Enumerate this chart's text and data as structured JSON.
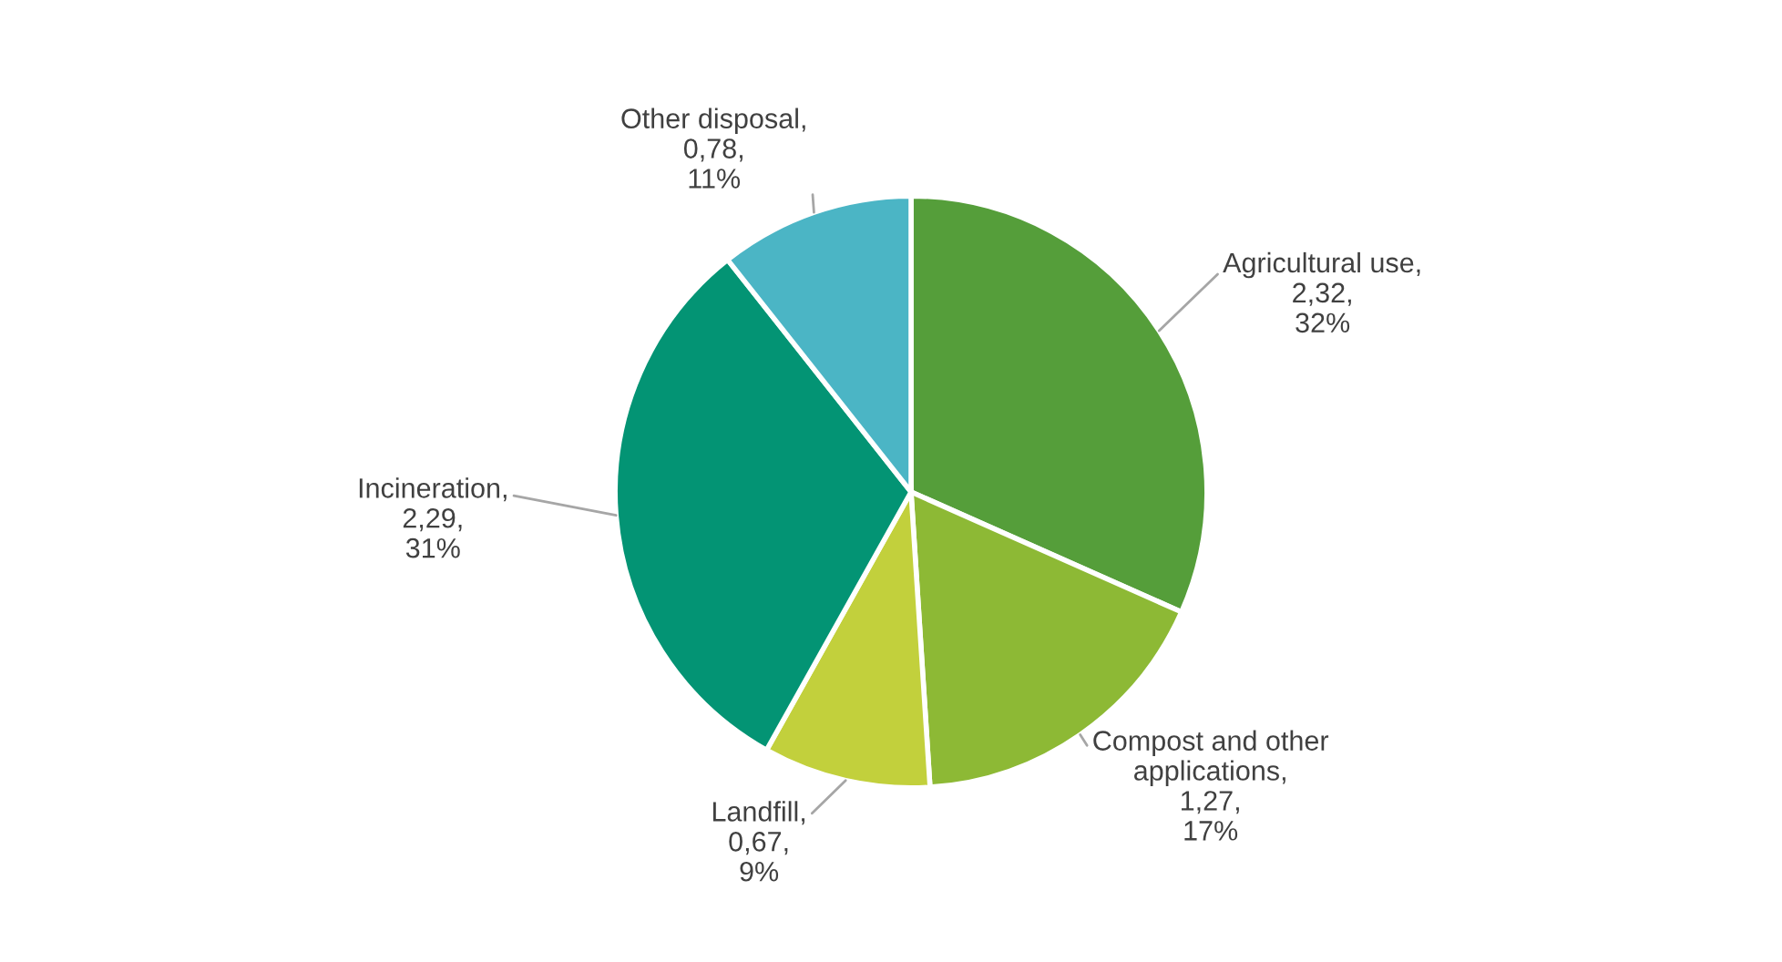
{
  "chart_data": {
    "type": "pie",
    "categories": [
      "Agricultural use",
      "Compost and other\napplications",
      "Landfill",
      "Incineration",
      "Other disposal"
    ],
    "values": [
      2.32,
      1.27,
      0.67,
      2.29,
      0.78
    ],
    "value_labels": [
      ",\n2,32,\n32%",
      ",\n1,27,\n17%",
      ",\n0,67,\n9%",
      ",\n2,29,\n31%",
      ",\n0,78,\n11%"
    ],
    "colors": [
      "#559e3a",
      "#8db935",
      "#c2d03c",
      "#039474",
      "#4bb5c5"
    ],
    "legend": false
  }
}
